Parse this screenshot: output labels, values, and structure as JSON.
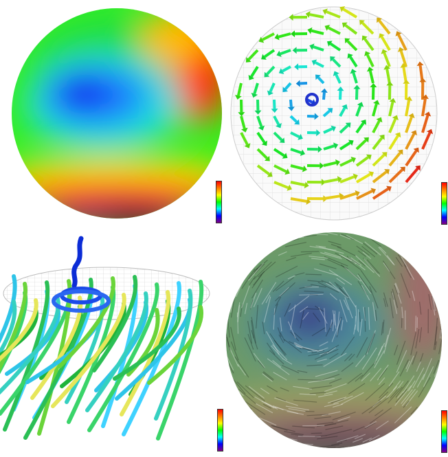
{
  "figure": {
    "panels": [
      {
        "id": "scalar-magnitude",
        "kind": "color-mapped scalar field on disk"
      },
      {
        "id": "vector-arrows",
        "kind": "3D arrow glyphs on disk"
      },
      {
        "id": "streamtubes",
        "kind": "3D streamtubes above disk"
      },
      {
        "id": "lic-texture",
        "kind": "line integral convolution texture"
      }
    ],
    "colormap": [
      "#ff0000",
      "#ff8000",
      "#ffff00",
      "#00ff00",
      "#00ffff",
      "#0000ff",
      "#800080"
    ]
  }
}
